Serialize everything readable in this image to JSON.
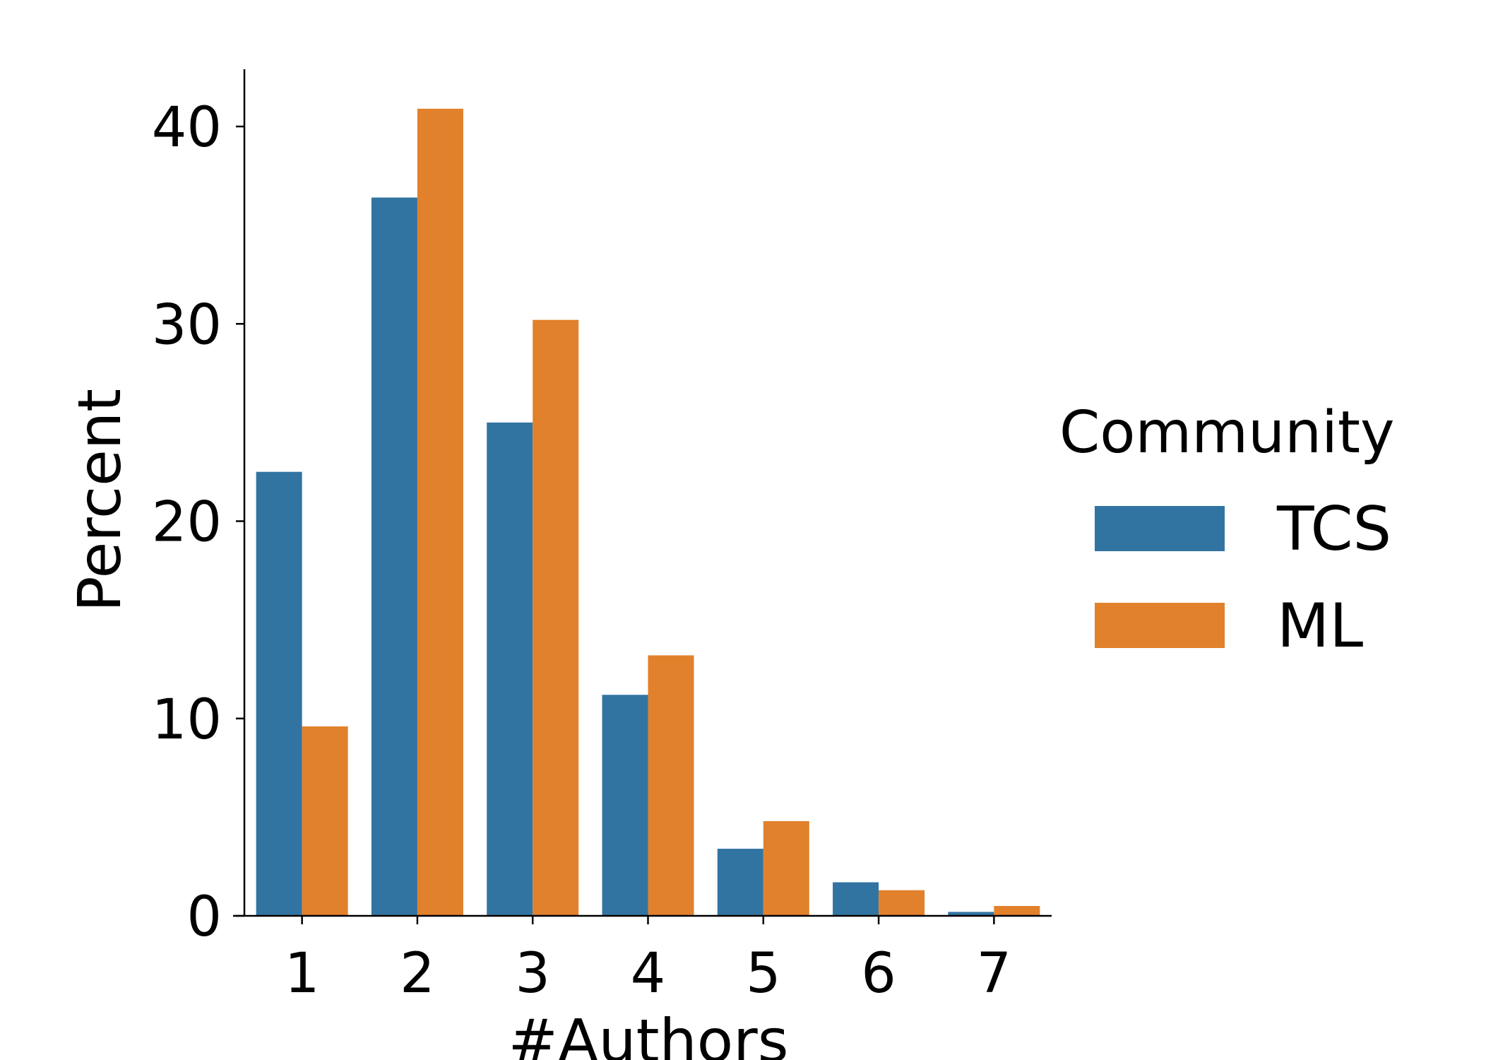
{
  "chart_data": {
    "type": "bar",
    "title": "",
    "xlabel": "#Authors",
    "ylabel": "Percent",
    "categories": [
      "1",
      "2",
      "3",
      "4",
      "5",
      "6",
      "7"
    ],
    "series": [
      {
        "name": "TCS",
        "color": "#3274a1",
        "values": [
          22.5,
          36.4,
          25.0,
          11.2,
          3.4,
          1.7,
          0.2
        ]
      },
      {
        "name": "ML",
        "color": "#e1812c",
        "values": [
          9.6,
          40.9,
          30.2,
          13.2,
          4.8,
          1.3,
          0.5
        ]
      }
    ],
    "ylim": [
      0,
      43
    ],
    "yticks": [
      0,
      10,
      20,
      30,
      40
    ],
    "legend": {
      "title": "Community",
      "placement": "right"
    },
    "grid": false
  }
}
